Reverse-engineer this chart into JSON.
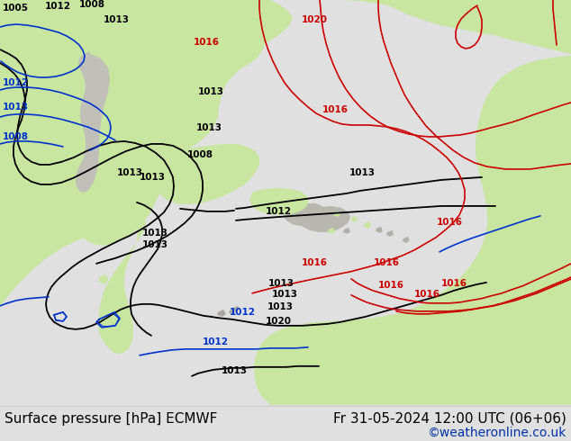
{
  "title_left": "Surface pressure [hPa] ECMWF",
  "title_right": "Fr 31-05-2024 12:00 UTC (06+06)",
  "copyright": "©weatheronline.co.uk",
  "bg_color": "#e0e0e0",
  "land_color_green": "#c8e6a0",
  "land_color_gray": "#b8b8b0",
  "ocean_color": "#e0e0e0",
  "footer_bg": "#f0f0f0",
  "footer_line_color": "#aaaaaa",
  "text_color_black": "#000000",
  "text_color_blue": "#0033cc",
  "text_color_red": "#cc0000",
  "copyright_color": "#0033aa",
  "font_size_footer": 11,
  "figsize": [
    6.34,
    4.9
  ],
  "dpi": 100,
  "isobar_lw_black": 1.3,
  "isobar_lw_blue": 1.2,
  "isobar_lw_red": 1.2
}
